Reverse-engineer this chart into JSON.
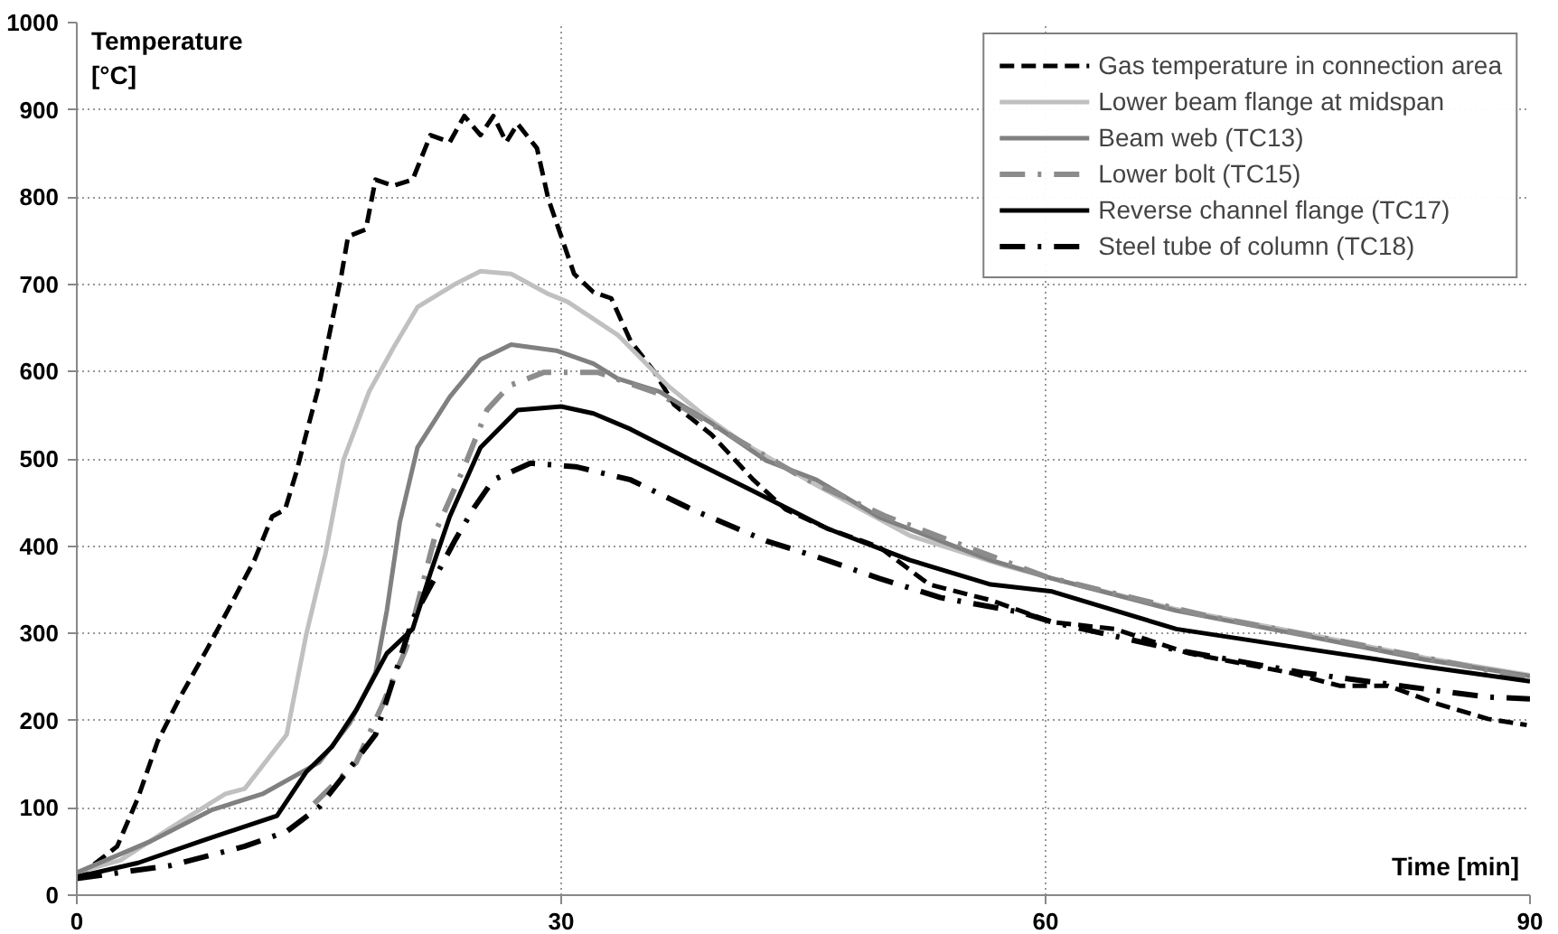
{
  "chart_data": {
    "type": "line",
    "xlabel": "Time [min]",
    "ylabel": "Temperature\n[°C]",
    "xlim": [
      0,
      90
    ],
    "ylim": [
      0,
      1000
    ],
    "xticks": [
      0,
      30,
      60,
      90
    ],
    "yticks": [
      0,
      100,
      200,
      300,
      400,
      500,
      600,
      700,
      800,
      900,
      1000
    ],
    "grid": true,
    "legend": "top right",
    "marker": "none",
    "series": [
      {
        "name": "Gas temperature in connection area",
        "color": "#000000",
        "line_style": "dashed",
        "x": [
          0,
          2.5,
          3.8,
          5.0,
          6.4,
          8.1,
          9.6,
          11.0,
          12.1,
          12.9,
          13.6,
          14.2,
          15.0,
          15.8,
          16.4,
          16.8,
          17.9,
          18.5,
          19.6,
          20.8,
          21.9,
          23.1,
          24.0,
          25.0,
          25.8,
          26.6,
          27.3,
          28.5,
          29.2,
          30.0,
          30.8,
          32.0,
          33.1,
          34.3,
          35.8,
          37.0,
          39.3,
          41.9,
          43.9,
          46.5,
          49.7,
          52.8,
          56.6,
          60.4,
          64.3,
          68.9,
          75.1,
          78.2,
          81.2,
          84.3,
          87.4,
          89.8
        ],
        "values": [
          20,
          56,
          112,
          176,
          227,
          283,
          335,
          384,
          434,
          442,
          485,
          528,
          584,
          657,
          712,
          755,
          763,
          820,
          813,
          820,
          871,
          863,
          893,
          871,
          893,
          863,
          884,
          856,
          798,
          755,
          712,
          691,
          684,
          635,
          599,
          562,
          528,
          476,
          442,
          420,
          399,
          356,
          338,
          313,
          305,
          277,
          255,
          240,
          240,
          219,
          202,
          195
        ]
      },
      {
        "name": "Lower beam flange at midspan",
        "color": "#c0c0c0",
        "line_style": "solid",
        "x": [
          0,
          2.7,
          5.8,
          9.2,
          10.4,
          13.0,
          14.2,
          15.4,
          16.5,
          18.1,
          19.6,
          21.1,
          23.4,
          25.0,
          26.9,
          29.2,
          30.4,
          33.5,
          36.6,
          38.9,
          41.2,
          45.8,
          51.6,
          57.4,
          60.4,
          68.0,
          76.0,
          83.5,
          90
        ],
        "values": [
          26,
          40,
          77,
          116,
          122,
          184,
          298,
          391,
          498,
          577,
          627,
          674,
          700,
          715,
          712,
          689,
          680,
          642,
          584,
          549,
          519,
          470,
          412,
          378,
          363,
          328,
          300,
          272,
          252
        ]
      },
      {
        "name": "Beam web (TC13)",
        "color": "#808080",
        "line_style": "solid",
        "x": [
          0,
          4.6,
          8.4,
          11.5,
          15.0,
          16.9,
          18.5,
          19.2,
          20.0,
          21.1,
          23.1,
          25.0,
          26.9,
          29.7,
          32.0,
          33.5,
          36.1,
          39.3,
          42.7,
          45.8,
          49.7,
          53.5,
          56.6,
          60.4,
          68.1,
          75.9,
          83.5,
          90
        ],
        "values": [
          26,
          62,
          98,
          116,
          152,
          197,
          255,
          326,
          427,
          513,
          571,
          614,
          631,
          624,
          609,
          592,
          577,
          541,
          498,
          476,
          433,
          406,
          384,
          363,
          326,
          298,
          270,
          251
        ]
      },
      {
        "name": "Lower bolt (TC15)",
        "color": "#8c8c8c",
        "line_style": "dashdot",
        "x": [
          14.7,
          17.3,
          18.9,
          20.4,
          22.3,
          24.0,
          25.4,
          26.8,
          28.9,
          32.3,
          36.0,
          40.0,
          45.0,
          50.0,
          55.0,
          60.0,
          70.0,
          80.0,
          90.0
        ],
        "values": [
          105,
          152,
          217,
          283,
          420,
          491,
          556,
          584,
          599,
          599,
          575,
          532,
          478,
          435,
          400,
          365,
          320,
          285,
          248
        ]
      },
      {
        "name": "Reverse channel flange (TC17)",
        "color": "#000000",
        "line_style": "solid",
        "x": [
          0,
          3.8,
          7.7,
          12.4,
          14.2,
          15.8,
          17.3,
          19.2,
          20.8,
          21.9,
          23.1,
          25.0,
          27.3,
          30.0,
          32.0,
          34.3,
          38.1,
          41.9,
          46.5,
          51.6,
          56.6,
          60.4,
          68.1,
          75.9,
          83.5,
          90
        ],
        "values": [
          21,
          37,
          62,
          91,
          141,
          170,
          212,
          277,
          305,
          369,
          434,
          513,
          556,
          560,
          552,
          534,
          498,
          463,
          420,
          384,
          356,
          348,
          305,
          283,
          262,
          245
        ]
      },
      {
        "name": "Steel tube of column (TC18)",
        "color": "#000000",
        "line_style": "dashdot",
        "x": [
          0,
          5.8,
          10.4,
          13.0,
          15.0,
          17.3,
          18.5,
          20.8,
          23.4,
          24.6,
          25.8,
          28.1,
          30.9,
          34.3,
          38.1,
          42.7,
          45.8,
          49.7,
          53.5,
          58.5,
          60.4,
          68.1,
          75.9,
          84.0,
          87.4,
          90
        ],
        "values": [
          19,
          34,
          56,
          73,
          101,
          155,
          184,
          316,
          406,
          444,
          476,
          495,
          491,
          476,
          442,
          406,
          388,
          363,
          341,
          324,
          313,
          281,
          255,
          235,
          227,
          225
        ]
      }
    ]
  }
}
